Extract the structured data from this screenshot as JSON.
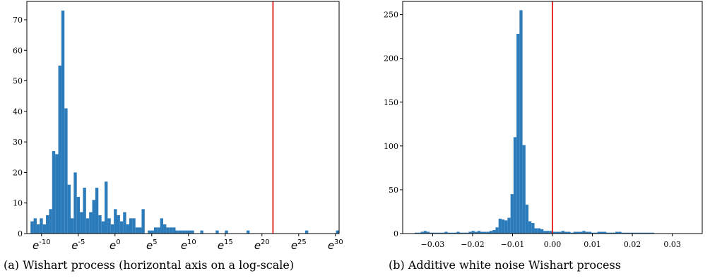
{
  "captions": {
    "a": "(a) Wishart process (horizontal axis on a log-scale)",
    "b": "(b) Additive white noise Wishart process"
  },
  "colors": {
    "bar": "#2b7bba",
    "line": "#e31a1c",
    "axis": "#000000"
  },
  "chart_data": [
    {
      "type": "bar",
      "subtype": "histogram",
      "xscale": "log (natural)",
      "xlim": [
        -12,
        30.5
      ],
      "ylim": [
        0,
        76
      ],
      "xtick_exponents": [
        -10,
        -5,
        0,
        5,
        10,
        15,
        20,
        25,
        30
      ],
      "xtick_labels": [
        "e^-10",
        "e^-5",
        "e^0",
        "e^5",
        "e^10",
        "e^15",
        "e^20",
        "e^25",
        "e^30"
      ],
      "yticks": [
        0,
        10,
        20,
        30,
        40,
        50,
        60,
        70
      ],
      "bin_width": 0.42,
      "bin_start": -11.5,
      "counts": [
        4,
        5,
        3,
        5,
        3,
        6,
        8,
        27,
        26,
        55,
        73,
        41,
        16,
        5,
        20,
        12,
        7,
        15,
        5,
        7,
        11,
        15,
        6,
        4,
        17,
        5,
        3,
        8,
        6,
        4,
        7,
        3,
        5,
        5,
        2,
        2,
        8,
        0,
        1,
        1,
        2,
        2,
        5,
        3,
        2,
        2,
        2,
        1,
        1,
        1,
        1,
        1,
        1,
        0,
        0,
        1,
        0,
        0,
        0,
        0,
        1,
        0,
        0,
        1,
        0,
        0,
        0,
        0,
        0,
        0,
        1,
        0,
        0,
        0,
        0,
        0,
        0,
        0,
        0,
        0,
        0,
        0,
        0,
        0,
        0,
        0,
        0,
        0,
        0,
        1,
        0,
        0,
        0,
        0,
        0,
        0,
        0,
        0,
        0,
        1
      ],
      "vline_exponent": 21.5
    },
    {
      "type": "bar",
      "subtype": "histogram",
      "xlim": [
        -0.0375,
        0.0375
      ],
      "ylim": [
        0,
        265
      ],
      "xticks": [
        -0.03,
        -0.02,
        -0.01,
        0.0,
        0.01,
        0.02,
        0.03
      ],
      "xtick_labels": [
        "−0.03",
        "−0.02",
        "−0.01",
        "0.00",
        "0.01",
        "0.02",
        "0.03"
      ],
      "yticks": [
        0,
        50,
        100,
        150,
        200,
        250
      ],
      "bin_width": 0.00075,
      "bin_start": -0.0345,
      "counts": [
        1,
        1,
        2,
        3,
        2,
        1,
        1,
        1,
        1,
        1,
        2,
        1,
        1,
        1,
        2,
        1,
        1,
        1,
        2,
        3,
        2,
        3,
        2,
        2,
        2,
        3,
        4,
        7,
        17,
        16,
        15,
        18,
        45,
        110,
        228,
        255,
        101,
        33,
        14,
        12,
        6,
        6,
        5,
        3,
        3,
        3,
        2,
        2,
        2,
        3,
        2,
        2,
        1,
        2,
        2,
        2,
        3,
        2,
        2,
        1,
        1,
        2,
        2,
        2,
        1,
        1,
        1,
        2,
        2,
        1,
        1,
        1,
        1,
        1,
        1,
        1,
        1,
        1,
        1,
        1
      ],
      "vline_x": 0.0
    }
  ]
}
